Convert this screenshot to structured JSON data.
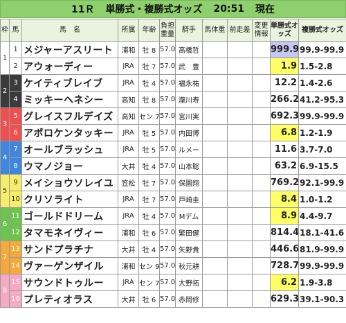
{
  "header": {
    "race": "11Ｒ",
    "title": "単勝式・複勝式オッズ",
    "time": "20:51",
    "status": "現在"
  },
  "columns": [
    "枠",
    "馬",
    "馬　名",
    "所属",
    "年齢",
    "負担重量",
    "騎手",
    "馬体重",
    "前走差",
    "変更情報",
    "単勝式オッズ",
    "複勝式オッズ"
  ],
  "frames": [
    {
      "label": "1",
      "color": "#ffffff",
      "text_color": "#333333",
      "rows": 2
    },
    {
      "label": "2",
      "color": "#3b3b3b",
      "text_color": "#ffffff",
      "rows": 2
    },
    {
      "label": "3",
      "color": "#ef4f4f",
      "text_color": "#ffffff",
      "rows": 2
    },
    {
      "label": "4",
      "color": "#3f86de",
      "text_color": "#ffffff",
      "rows": 2
    },
    {
      "label": "5",
      "color": "#f6ed6a",
      "text_color": "#333333",
      "rows": 2
    },
    {
      "label": "6",
      "color": "#6bc44b",
      "text_color": "#ffffff",
      "rows": 2
    },
    {
      "label": "7",
      "color": "#f4a93a",
      "text_color": "#ffffff",
      "rows": 2
    },
    {
      "label": "8",
      "color": "#f6a9c3",
      "text_color": "#ffffff",
      "rows": 2
    }
  ],
  "horses": [
    {
      "no": "1",
      "name": "メジャーアスリート",
      "aff": "浦和",
      "age": "牡 8",
      "weight": "57.0",
      "jockey": "高橋哲",
      "win": "999.9",
      "place": "99.9-99.9",
      "win_bg": "lavender"
    },
    {
      "no": "2",
      "name": "アウォーディー",
      "aff": "JRA",
      "age": "牡 7",
      "weight": "57.0",
      "jockey": "武　豊",
      "win": "1.9",
      "place": "1.5-2.8",
      "win_bg": "yellow"
    },
    {
      "no": "3",
      "name": "ケイティブレイブ",
      "aff": "JRA",
      "age": "牡 4",
      "weight": "57.0",
      "jockey": "福永祐",
      "win": "12.2",
      "place": "1.4-2.6",
      "win_bg": ""
    },
    {
      "no": "4",
      "name": "ミッキーヘネシー",
      "aff": "高知",
      "age": "牡 8",
      "weight": "57.0",
      "jockey": "瀧川寿",
      "win": "266.2",
      "place": "41.2-95.3",
      "win_bg": ""
    },
    {
      "no": "5",
      "name": "グレイスフルデイズ",
      "aff": "高知",
      "age": "セン 7",
      "weight": "57.0",
      "jockey": "宮川実",
      "win": "692.3",
      "place": "99.9-99.9",
      "win_bg": ""
    },
    {
      "no": "6",
      "name": "アポロケンタッキー",
      "aff": "JRA",
      "age": "牡 5",
      "weight": "57.0",
      "jockey": "内田博",
      "win": "6.8",
      "place": "1.2-1.9",
      "win_bg": "yellow"
    },
    {
      "no": "7",
      "name": "オールブラッシュ",
      "aff": "JRA",
      "age": "牡 5",
      "weight": "57.0",
      "jockey": "ルメー",
      "win": "11.6",
      "place": "3.7-7.0",
      "win_bg": ""
    },
    {
      "no": "8",
      "name": "ウマノジョー",
      "aff": "大井",
      "age": "牡 4",
      "weight": "57.0",
      "jockey": "山本聡",
      "win": "63.2",
      "place": "6.9-15.5",
      "win_bg": ""
    },
    {
      "no": "9",
      "name": "メイショウソレイユ",
      "aff": "笠松",
      "age": "牡 7",
      "weight": "57.0",
      "jockey": "保園翔",
      "win": "769.2",
      "place": "92.1-99.9",
      "win_bg": ""
    },
    {
      "no": "10",
      "name": "クリソライト",
      "aff": "JRA",
      "age": "牡 7",
      "weight": "57.0",
      "jockey": "戸崎圭",
      "win": "8.4",
      "place": "1.0-1.2",
      "win_bg": "yellow"
    },
    {
      "no": "11",
      "name": "ゴールドドリーム",
      "aff": "JRA",
      "age": "牡 4",
      "weight": "57.0",
      "jockey": "Mデム",
      "win": "8.9",
      "place": "4.4-9.7",
      "win_bg": "yellow"
    },
    {
      "no": "12",
      "name": "タマモネイヴィー",
      "aff": "浦和",
      "age": "牡 6",
      "weight": "57.0",
      "jockey": "繁田健",
      "win": "814.4",
      "place": "18.1-41.6",
      "win_bg": ""
    },
    {
      "no": "13",
      "name": "サンドプラチナ",
      "aff": "大井",
      "age": "牡 4",
      "weight": "57.0",
      "jockey": "矢野貴",
      "win": "446.6",
      "place": "81.9-99.9",
      "win_bg": ""
    },
    {
      "no": "14",
      "name": "ヴァーゲンザイル",
      "aff": "浦和",
      "age": "セン 9",
      "weight": "57.0",
      "jockey": "秋元耕",
      "win": "728.7",
      "place": "99.9-99.9",
      "win_bg": ""
    },
    {
      "no": "15",
      "name": "サウンドトゥルー",
      "aff": "JRA",
      "age": "セン 7",
      "weight": "57.0",
      "jockey": "大野拓",
      "win": "6.2",
      "place": "1.9-3.8",
      "win_bg": "yellow"
    },
    {
      "no": "16",
      "name": "プレティオラス",
      "aff": "大井",
      "age": "牡 6",
      "weight": "57.0",
      "jockey": "赤岡修",
      "win": "629.3",
      "place": "39.1-90.3",
      "win_bg": ""
    }
  ]
}
